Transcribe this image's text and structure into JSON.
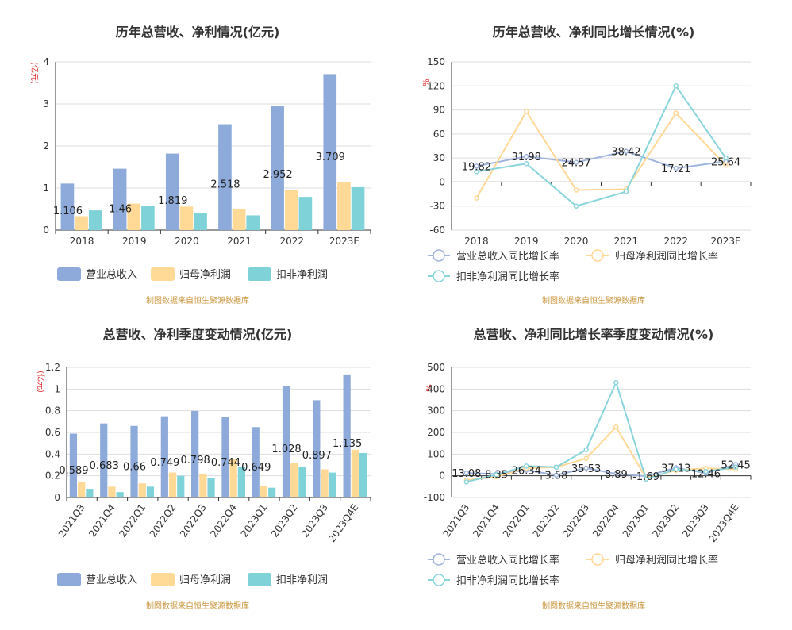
{
  "colors": {
    "revenue": "#8eaadb",
    "net_profit": "#ffd996",
    "deducted_profit": "#7fd3d8",
    "revenue_line": "#9fb4dd",
    "net_profit_line": "#ffd896",
    "deducted_line": "#8ad5dc",
    "unit_label": "#e03030",
    "source_text": "#c8963c"
  },
  "source_note": "制图数据来自恒生聚源数据库",
  "chart_data": [
    {
      "id": "annual_amount",
      "type": "bar",
      "title": "历年总营收、净利情况(亿元)",
      "unit_label": "(亿元)",
      "categories": [
        "2018",
        "2019",
        "2020",
        "2021",
        "2022",
        "2023E"
      ],
      "ylim": [
        0,
        4
      ],
      "yticks": [
        0,
        1,
        2,
        3,
        4
      ],
      "grid": true,
      "legend_position": "bottom",
      "series": [
        {
          "name": "营业总收入",
          "values": [
            1.106,
            1.46,
            1.819,
            2.518,
            2.952,
            3.709
          ],
          "labels": [
            "1.106",
            "1.46",
            "1.819",
            "2.518",
            "2.952",
            "3.709"
          ]
        },
        {
          "name": "归母净利润",
          "values": [
            0.33,
            0.63,
            0.56,
            0.51,
            0.95,
            1.15
          ]
        },
        {
          "name": "扣非净利润",
          "values": [
            0.47,
            0.58,
            0.41,
            0.35,
            0.79,
            1.02
          ]
        }
      ]
    },
    {
      "id": "annual_growth",
      "type": "line",
      "title": "历年总营收、净利同比增长情况(%)",
      "unit_label": "%",
      "categories": [
        "2018",
        "2019",
        "2020",
        "2021",
        "2022",
        "2023E"
      ],
      "ylim": [
        -60,
        150
      ],
      "yticks": [
        -60,
        -30,
        0,
        30,
        60,
        90,
        120,
        150
      ],
      "grid": true,
      "legend_position": "bottom",
      "series": [
        {
          "name": "营业总收入同比增长率",
          "values": [
            19.82,
            31.98,
            24.57,
            38.42,
            17.21,
            25.64
          ],
          "labels": [
            "19.82",
            "31.98",
            "24.57",
            "38.42",
            "17.21",
            "25.64"
          ]
        },
        {
          "name": "归母净利润同比增长率",
          "values": [
            -20,
            88,
            -10,
            -9,
            86,
            21
          ]
        },
        {
          "name": "扣非净利润同比增长率",
          "values": [
            13,
            23,
            -30,
            -12,
            120,
            30
          ]
        }
      ]
    },
    {
      "id": "quarterly_amount",
      "type": "bar",
      "title": "总营收、净利季度变动情况(亿元)",
      "unit_label": "(亿元)",
      "categories": [
        "2021Q3",
        "2021Q4",
        "2022Q1",
        "2022Q2",
        "2022Q3",
        "2022Q4",
        "2023Q1",
        "2023Q2",
        "2023Q3",
        "2023Q4E"
      ],
      "ylim": [
        0,
        1.2
      ],
      "yticks": [
        0,
        0.2,
        0.4,
        0.6,
        0.8,
        1,
        1.2
      ],
      "grid": true,
      "legend_position": "bottom",
      "series": [
        {
          "name": "营业总收入",
          "values": [
            0.589,
            0.683,
            0.66,
            0.749,
            0.798,
            0.744,
            0.649,
            1.028,
            0.897,
            1.135
          ],
          "labels": [
            "0.589",
            "0.683",
            "0.66",
            "0.749",
            "0.798",
            "0.744",
            "0.649",
            "1.028",
            "0.897",
            "1.135"
          ]
        },
        {
          "name": "归母净利润",
          "values": [
            0.14,
            0.1,
            0.13,
            0.23,
            0.22,
            0.35,
            0.11,
            0.32,
            0.26,
            0.44
          ]
        },
        {
          "name": "扣非净利润",
          "values": [
            0.08,
            0.05,
            0.1,
            0.2,
            0.18,
            0.28,
            0.09,
            0.28,
            0.23,
            0.41
          ]
        }
      ]
    },
    {
      "id": "quarterly_growth",
      "type": "line",
      "title": "总营收、净利同比增长率季度变动情况(%)",
      "unit_label": "%",
      "categories": [
        "2021Q3",
        "2021Q4",
        "2022Q1",
        "2022Q2",
        "2022Q3",
        "2022Q4",
        "2023Q1",
        "2023Q2",
        "2023Q3",
        "2023Q4E"
      ],
      "ylim": [
        -100,
        500
      ],
      "yticks": [
        -100,
        0,
        100,
        200,
        300,
        400,
        500
      ],
      "grid": true,
      "legend_position": "bottom",
      "series": [
        {
          "name": "营业总收入同比增长率",
          "values": [
            13.08,
            8.35,
            26.34,
            3.58,
            35.53,
            8.89,
            -1.69,
            37.13,
            12.46,
            52.45
          ],
          "labels": [
            "13.08",
            "8.35",
            "26.34",
            "3.58",
            "35.53",
            "8.89",
            "-1.69",
            "37.13",
            "12.46",
            "52.45"
          ]
        },
        {
          "name": "归母净利润同比增长率",
          "values": [
            -20,
            -5,
            35,
            40,
            80,
            225,
            -10,
            25,
            35,
            30
          ]
        },
        {
          "name": "扣非净利润同比增长率",
          "values": [
            -28,
            5,
            45,
            40,
            120,
            430,
            -15,
            30,
            20,
            40
          ]
        }
      ]
    }
  ]
}
